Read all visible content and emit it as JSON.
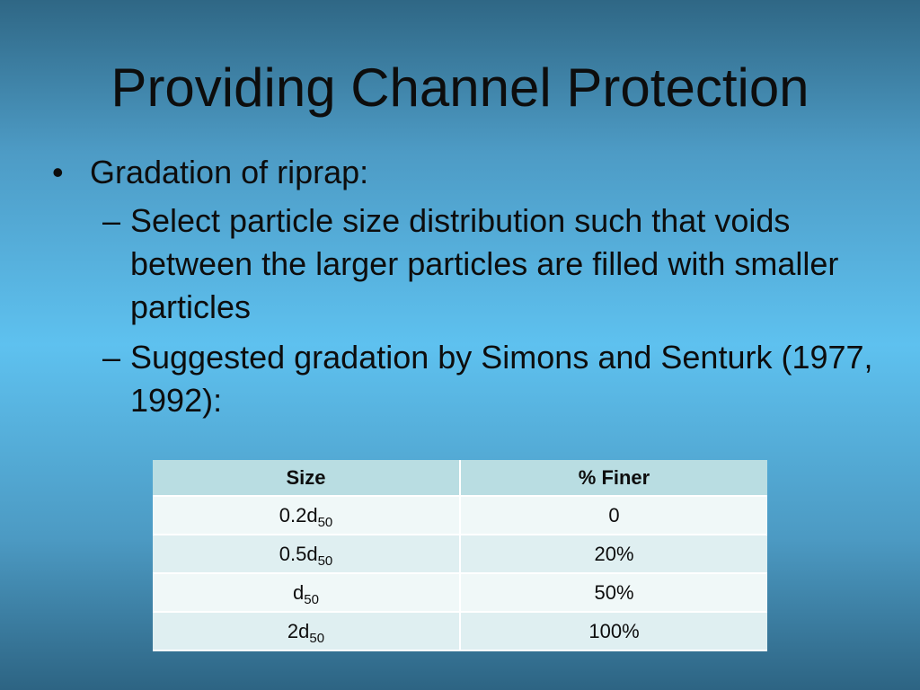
{
  "slide": {
    "title": "Providing Channel Protection",
    "bullets": [
      {
        "marker": "•",
        "text": "Gradation of riprap:",
        "sub": [
          {
            "marker": "–",
            "text": "Select particle size distribution such that voids between the larger particles are filled with smaller particles"
          },
          {
            "marker": "–",
            "text": "Suggested gradation by Simons and Senturk (1977, 1992):"
          }
        ]
      }
    ]
  },
  "table": {
    "headers": [
      "Size",
      "% Finer"
    ],
    "rows": [
      {
        "size_prefix": "0.2d",
        "size_sub": "50",
        "finer": "0"
      },
      {
        "size_prefix": "0.5d",
        "size_sub": "50",
        "finer": "20%"
      },
      {
        "size_prefix": "d",
        "size_sub": "50",
        "finer": "50%"
      },
      {
        "size_prefix": "2d",
        "size_sub": "50",
        "finer": "100%"
      }
    ]
  }
}
